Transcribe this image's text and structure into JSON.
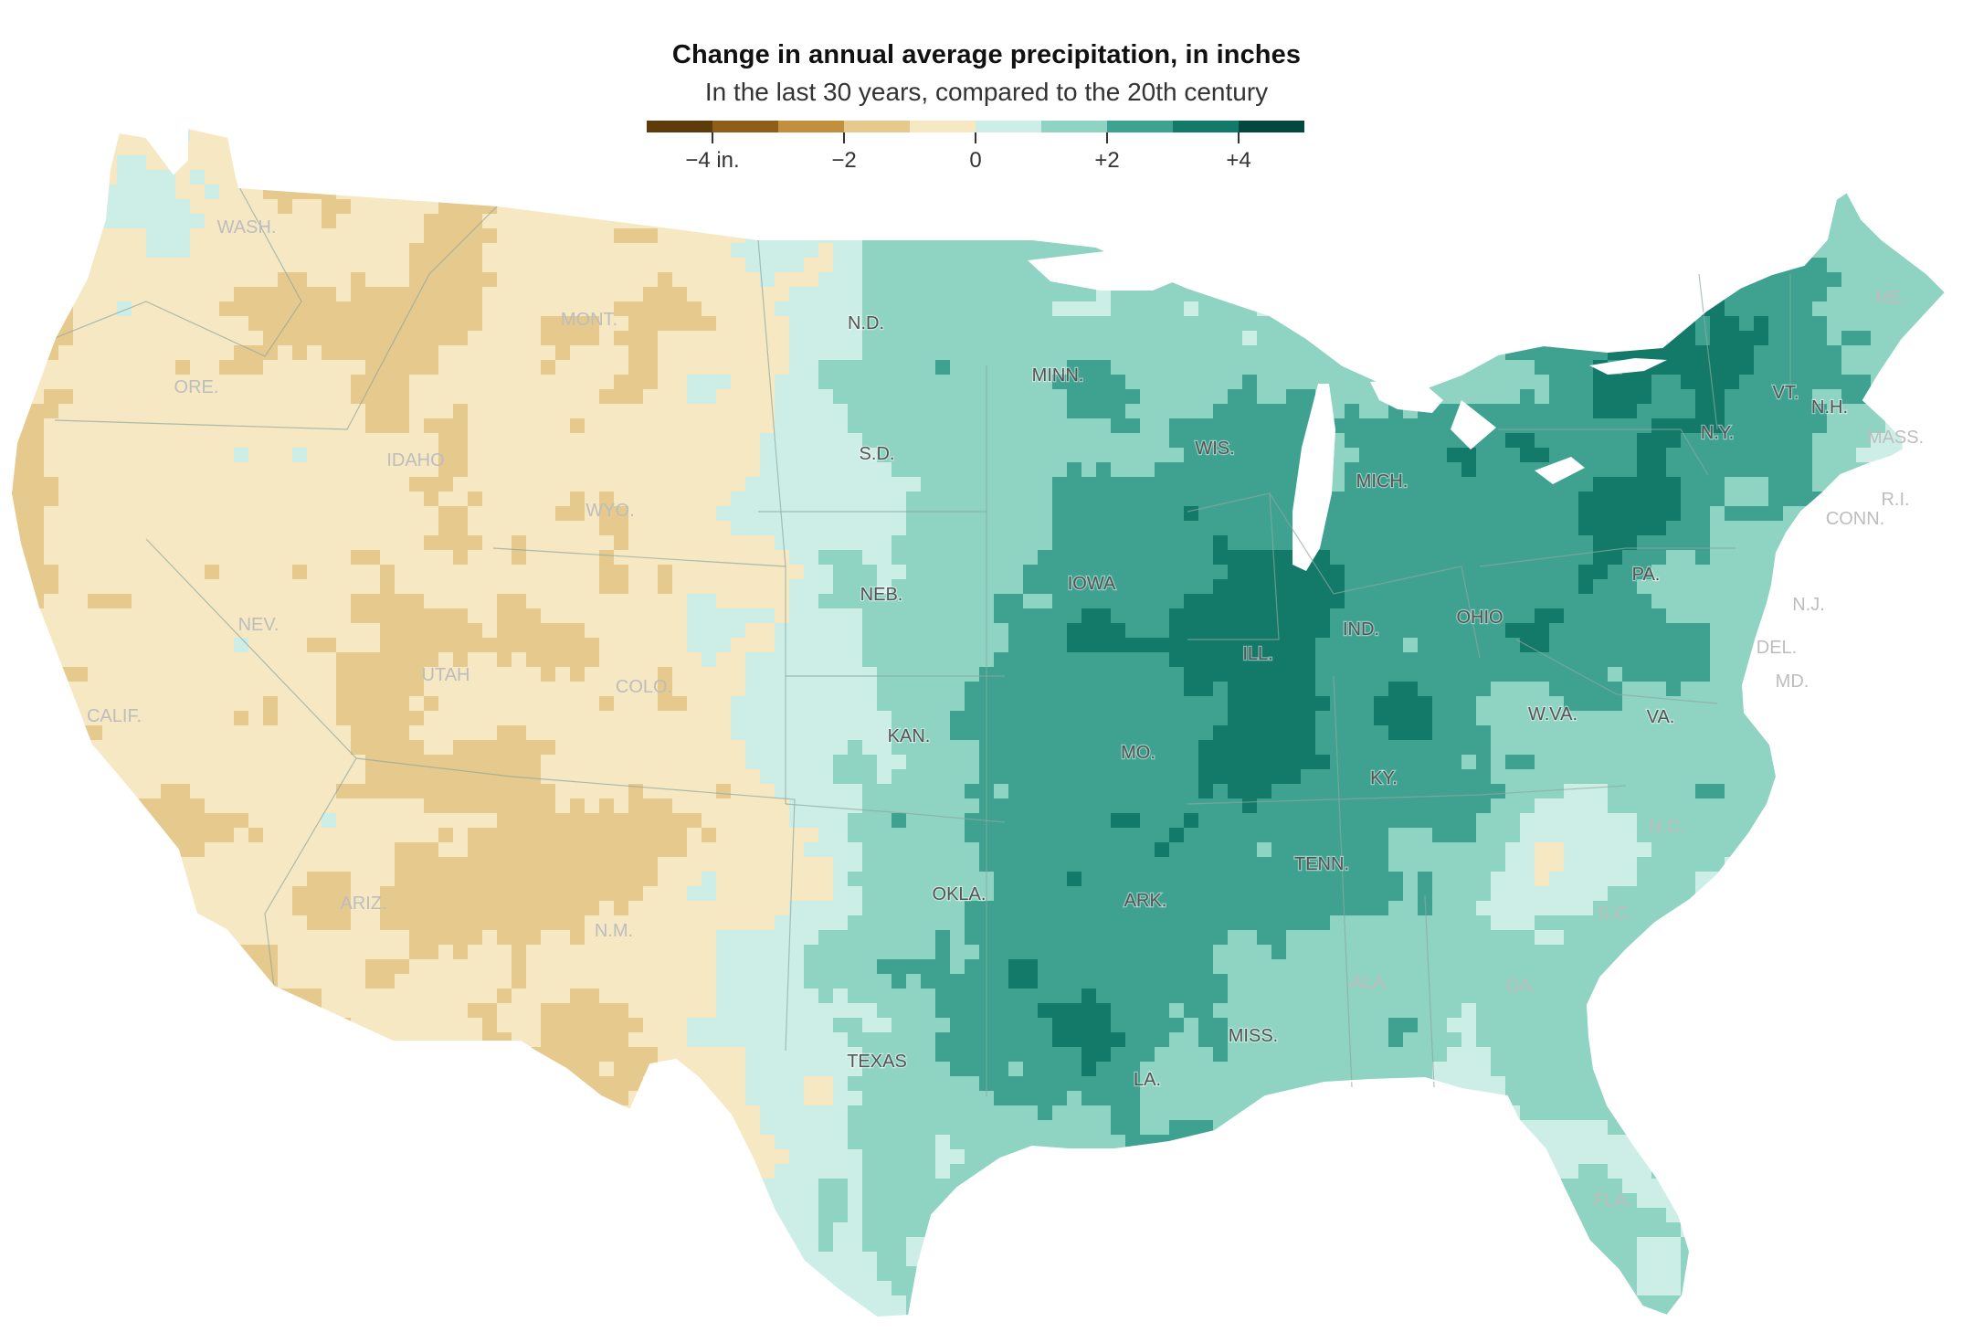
{
  "title": "Change in annual average precipitation, in inches",
  "subtitle": "In the last 30 years, compared to the 20th century",
  "colors": {
    "water": "#ffffff",
    "boundary": "#8fa79f",
    "label_dark": "#555555",
    "label_light": "#bdbdbd",
    "halo": "#ffffff"
  },
  "legend": {
    "swatches": [
      "#5d3b0b",
      "#8f5e1b",
      "#c28f3e",
      "#e6c98c",
      "#f5e8c2",
      "#cdeee6",
      "#8fd3c3",
      "#3fa291",
      "#137a6a",
      "#02483f"
    ],
    "ticks": [
      {
        "label": "−4 in."
      },
      {
        "label": "−2"
      },
      {
        "label": "0"
      },
      {
        "label": "+2"
      },
      {
        "label": "+4"
      }
    ]
  },
  "states": [
    {
      "name": "WASH.",
      "tone": "light"
    },
    {
      "name": "ORE.",
      "tone": "light"
    },
    {
      "name": "CALIF.",
      "tone": "light"
    },
    {
      "name": "NEV.",
      "tone": "light"
    },
    {
      "name": "IDAHO",
      "tone": "light"
    },
    {
      "name": "MONT.",
      "tone": "light"
    },
    {
      "name": "WYO.",
      "tone": "light"
    },
    {
      "name": "UTAH",
      "tone": "light"
    },
    {
      "name": "COLO.",
      "tone": "light"
    },
    {
      "name": "ARIZ.",
      "tone": "light"
    },
    {
      "name": "N.M.",
      "tone": "light"
    },
    {
      "name": "N.D.",
      "tone": "dark"
    },
    {
      "name": "S.D.",
      "tone": "dark"
    },
    {
      "name": "NEB.",
      "tone": "dark"
    },
    {
      "name": "KAN.",
      "tone": "dark"
    },
    {
      "name": "OKLA.",
      "tone": "dark"
    },
    {
      "name": "TEXAS",
      "tone": "dark"
    },
    {
      "name": "MINN.",
      "tone": "dark"
    },
    {
      "name": "IOWA",
      "tone": "dark"
    },
    {
      "name": "MO.",
      "tone": "dark"
    },
    {
      "name": "ARK.",
      "tone": "dark"
    },
    {
      "name": "LA.",
      "tone": "dark"
    },
    {
      "name": "WIS.",
      "tone": "dark"
    },
    {
      "name": "ILL.",
      "tone": "dark"
    },
    {
      "name": "MICH.",
      "tone": "dark"
    },
    {
      "name": "IND.",
      "tone": "dark"
    },
    {
      "name": "OHIO",
      "tone": "dark"
    },
    {
      "name": "KY.",
      "tone": "dark"
    },
    {
      "name": "TENN.",
      "tone": "dark"
    },
    {
      "name": "MISS.",
      "tone": "dark"
    },
    {
      "name": "ALA.",
      "tone": "light"
    },
    {
      "name": "GA.",
      "tone": "light"
    },
    {
      "name": "FLA.",
      "tone": "light"
    },
    {
      "name": "S.C.",
      "tone": "light"
    },
    {
      "name": "N.C.",
      "tone": "light"
    },
    {
      "name": "VA.",
      "tone": "dark"
    },
    {
      "name": "W.VA.",
      "tone": "dark"
    },
    {
      "name": "PA.",
      "tone": "dark"
    },
    {
      "name": "N.Y.",
      "tone": "dark"
    },
    {
      "name": "VT.",
      "tone": "dark"
    },
    {
      "name": "N.H.",
      "tone": "dark"
    },
    {
      "name": "ME.",
      "tone": "light"
    },
    {
      "name": "MASS.",
      "tone": "light"
    },
    {
      "name": "R.I.",
      "tone": "light"
    },
    {
      "name": "CONN.",
      "tone": "light"
    },
    {
      "name": "N.J.",
      "tone": "light"
    },
    {
      "name": "DEL.",
      "tone": "light"
    },
    {
      "name": "MD.",
      "tone": "light"
    }
  ]
}
